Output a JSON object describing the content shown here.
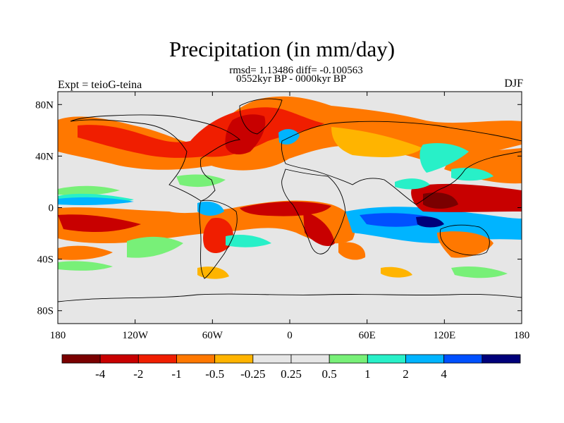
{
  "title": "Precipitation (in mm/day)",
  "stats_line": "rmsd= 1.13486 diff= -0.100563",
  "period_line": "0552kyr BP - 0000kyr BP",
  "experiment_label": "Expt = teioG-teina",
  "season_label": "DJF",
  "map": {
    "lat_range": [
      -90,
      90
    ],
    "lon_range": [
      -180,
      180
    ],
    "lat_ticks": [
      {
        "value": 80,
        "label": "80N"
      },
      {
        "value": 40,
        "label": "40N"
      },
      {
        "value": 0,
        "label": "0"
      },
      {
        "value": -40,
        "label": "40S"
      },
      {
        "value": -80,
        "label": "80S"
      }
    ],
    "lon_ticks": [
      {
        "value": -180,
        "label": "180"
      },
      {
        "value": -120,
        "label": "120W"
      },
      {
        "value": -60,
        "label": "60W"
      },
      {
        "value": 0,
        "label": "0"
      },
      {
        "value": 60,
        "label": "60E"
      },
      {
        "value": 120,
        "label": "120E"
      },
      {
        "value": 180,
        "label": "180"
      }
    ]
  },
  "colorbar": {
    "colors": [
      "#7a0000",
      "#c80000",
      "#f01e00",
      "#ff7800",
      "#ffb400",
      "#e6e6e6",
      "#e6e6e6",
      "#78f078",
      "#28f0c8",
      "#00b4ff",
      "#0050ff",
      "#00007a"
    ],
    "labels": [
      "-4",
      "-2",
      "-1",
      "-0.5",
      "-0.25",
      "0.25",
      "0.5",
      "1",
      "2",
      "4"
    ]
  },
  "colors": {
    "neutral": "#e6e6e6",
    "dry_strong": "#c80000",
    "dry": "#f01e00",
    "dry_mid": "#ff7800",
    "dry_weak": "#ffb400",
    "wet_weak": "#78f078",
    "wet_mid": "#28f0c8",
    "wet": "#00b4ff",
    "wet_strong": "#0050ff",
    "wet_extreme": "#00007a",
    "dry_extreme": "#7a0000"
  }
}
